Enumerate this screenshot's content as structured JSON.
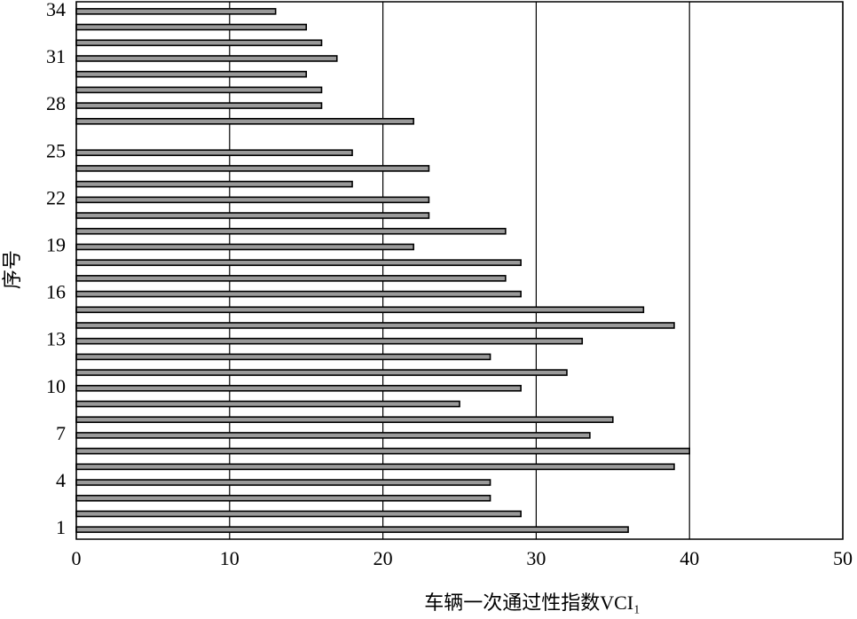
{
  "chart_data": {
    "type": "barh",
    "categories": [
      "1",
      null,
      null,
      "4",
      null,
      null,
      "7",
      null,
      null,
      "10",
      null,
      null,
      "13",
      null,
      null,
      "16",
      null,
      null,
      "19",
      null,
      null,
      "22",
      null,
      null,
      "25",
      null,
      null,
      "28",
      null,
      null,
      "31",
      null,
      null,
      "34"
    ],
    "values": [
      36,
      29,
      27,
      27,
      39,
      40,
      33.5,
      35,
      25,
      29,
      32,
      27,
      33,
      39,
      37,
      29,
      28,
      29,
      22,
      28,
      23,
      23,
      18,
      23,
      18,
      null,
      22,
      16,
      16,
      15,
      17,
      16,
      15,
      13
    ],
    "color": "#9a9a9a",
    "xlim": [
      0,
      50
    ],
    "xticks": [
      0,
      10,
      20,
      30,
      40,
      50
    ],
    "grid": true,
    "xlabel": "车辆一次通过性指数VCI₁",
    "ylabel": "序号"
  }
}
